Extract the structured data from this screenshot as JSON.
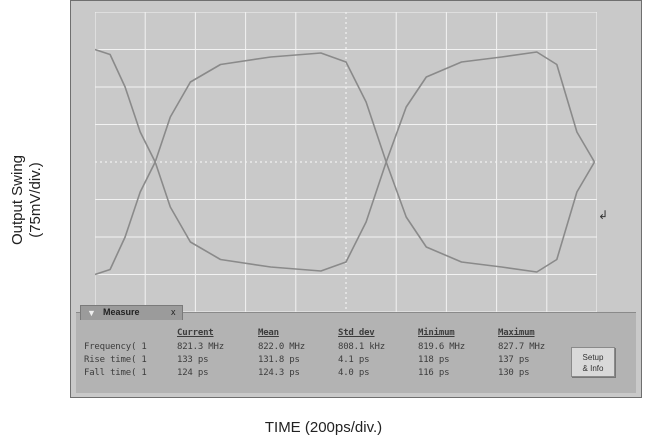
{
  "chart_data": {
    "type": "line",
    "title": "",
    "xlabel": "TIME (200ps/div.)",
    "ylabel": "Output Swing (75mV/div.)",
    "xlim": [
      0,
      2000
    ],
    "ylim": [
      -300,
      300
    ],
    "grid": true,
    "series": [
      {
        "values": [
          [
            0,
            225
          ],
          [
            60,
            215
          ],
          [
            120,
            150
          ],
          [
            180,
            60
          ],
          [
            240,
            0
          ],
          [
            300,
            -90
          ],
          [
            380,
            -160
          ],
          [
            500,
            -195
          ],
          [
            700,
            -210
          ],
          [
            900,
            -218
          ],
          [
            1000,
            -200
          ],
          [
            1080,
            -120
          ],
          [
            1160,
            0
          ],
          [
            1240,
            110
          ],
          [
            1320,
            170
          ],
          [
            1460,
            200
          ],
          [
            1620,
            210
          ],
          [
            1760,
            220
          ],
          [
            1840,
            195
          ],
          [
            1920,
            60
          ],
          [
            1990,
            0
          ]
        ]
      },
      {
        "values": [
          [
            0,
            -225
          ],
          [
            60,
            -215
          ],
          [
            120,
            -150
          ],
          [
            180,
            -60
          ],
          [
            240,
            0
          ],
          [
            300,
            90
          ],
          [
            380,
            160
          ],
          [
            500,
            195
          ],
          [
            700,
            210
          ],
          [
            900,
            218
          ],
          [
            1000,
            200
          ],
          [
            1080,
            120
          ],
          [
            1160,
            0
          ],
          [
            1240,
            -110
          ],
          [
            1320,
            -170
          ],
          [
            1460,
            -200
          ],
          [
            1620,
            -210
          ],
          [
            1760,
            -220
          ],
          [
            1840,
            -195
          ],
          [
            1920,
            -60
          ],
          [
            1990,
            0
          ]
        ]
      }
    ]
  },
  "measure": {
    "tab_title": "Measure",
    "tab_close": "x",
    "headers": [
      "Current",
      "Mean",
      "Std dev",
      "Minimum",
      "Maximum"
    ],
    "rows": [
      {
        "label": "Frequency( 1",
        "values": [
          "821.3 MHz",
          "822.0 MHz",
          "808.1 kHz",
          "819.6 MHz",
          "827.7 MHz"
        ]
      },
      {
        "label": "Rise time( 1",
        "values": [
          "133 ps",
          "131.8 ps",
          "4.1 ps",
          "118 ps",
          "137 ps"
        ]
      },
      {
        "label": "Fall time( 1",
        "values": [
          "124 ps",
          "124.3 ps",
          "4.0 ps",
          "116 ps",
          "130 ps"
        ]
      }
    ],
    "setup_label_1": "Setup",
    "setup_label_2": "& Info"
  },
  "colors": {
    "trace": "#8a8a8a",
    "grid": "#f2f2f2",
    "screen_bg": "#c9c9c9",
    "panel_bg": "#b3b3b3"
  },
  "icons": {
    "marker": "trigger-marker-icon"
  }
}
